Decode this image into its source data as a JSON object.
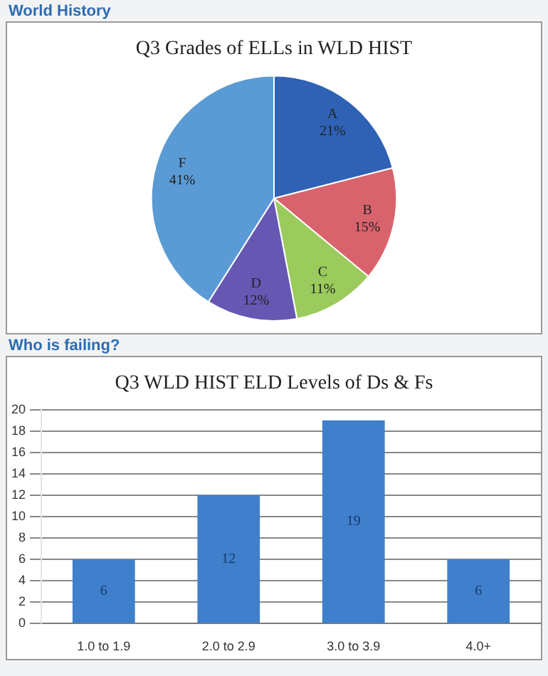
{
  "chart_data": [
    {
      "type": "pie",
      "title": "Q3 Grades of ELLs in WLD HIST",
      "annotations": [
        "World History"
      ],
      "categories": [
        "A",
        "B",
        "C",
        "D",
        "F"
      ],
      "values": [
        21,
        15,
        11,
        12,
        41
      ],
      "colors": [
        "#2f62b5",
        "#d9636c",
        "#9acb5c",
        "#6657b3",
        "#5b9bd5"
      ],
      "value_labels": [
        "21%",
        "15%",
        "11%",
        "12%",
        "41%"
      ],
      "legend": false
    },
    {
      "type": "bar",
      "title": "Q3 WLD HIST ELD Levels of Ds & Fs",
      "annotations": [
        "Who is failing?"
      ],
      "categories": [
        "1.0 to 1.9",
        "2.0 to 2.9",
        "3.0 to 3.9",
        "4.0+"
      ],
      "values": [
        6,
        12,
        19,
        6
      ],
      "color": "#3f7fcc",
      "ylim": [
        0,
        20
      ],
      "yticks": [
        0,
        2,
        4,
        6,
        8,
        10,
        12,
        14,
        16,
        18,
        20
      ],
      "grid": "y",
      "data_labels": true,
      "legend": false
    }
  ]
}
